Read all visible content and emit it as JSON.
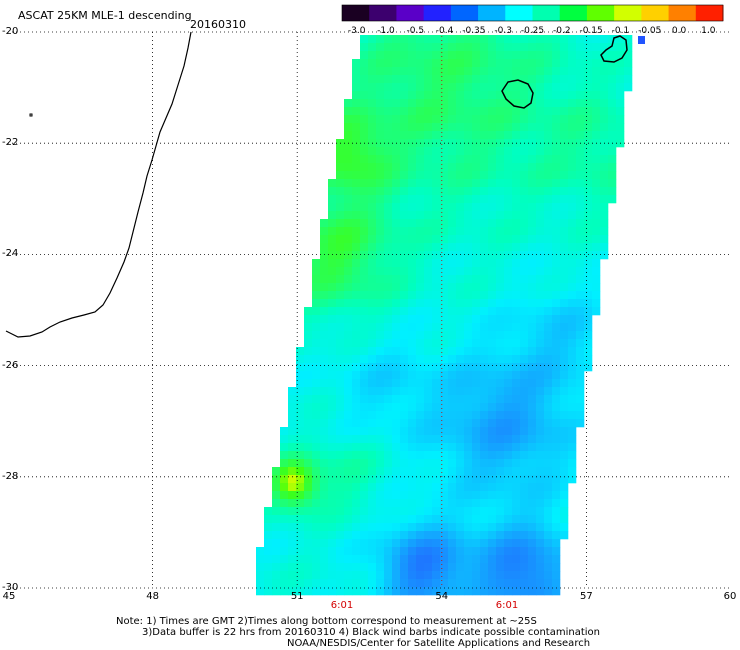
{
  "title": "ASCAT 25KM MLE-1 descending",
  "date": "20160310",
  "colorbar": {
    "ticks": [
      "-3.0",
      "-1.0",
      "-0.5",
      "-0.4",
      "-0.35",
      "-0.3",
      "-0.25",
      "-0.2",
      "-0.15",
      "-0.1",
      "-0.05",
      "0.0",
      "1.0"
    ],
    "colors": [
      "#1a0022",
      "#3c006e",
      "#5a00c8",
      "#2222ff",
      "#0066ff",
      "#00b4ff",
      "#00ffff",
      "#00ffb0",
      "#00ff40",
      "#60ff00",
      "#d2ff00",
      "#ffd000",
      "#ff8000",
      "#ff2000"
    ]
  },
  "axes": {
    "lat_labels": [
      "-20",
      "-22",
      "-24",
      "-26",
      "-28",
      "-30"
    ],
    "lon_labels": [
      "45",
      "48",
      "51",
      "54",
      "57",
      "60"
    ],
    "lat_range": [
      -30,
      -20
    ],
    "lon_range": [
      45,
      60
    ]
  },
  "times": [
    "6:01",
    "6:01"
  ],
  "notes": {
    "line1": "Note: 1) Times are GMT 2)Times along bottom correspond to measurement at ~25S",
    "line2": "3)Data buffer is 22 hrs from 20160310 4) Black wind barbs indicate possible contamination",
    "line3": "NOAA/NESDIS/Center for Satellite Applications and Research"
  }
}
